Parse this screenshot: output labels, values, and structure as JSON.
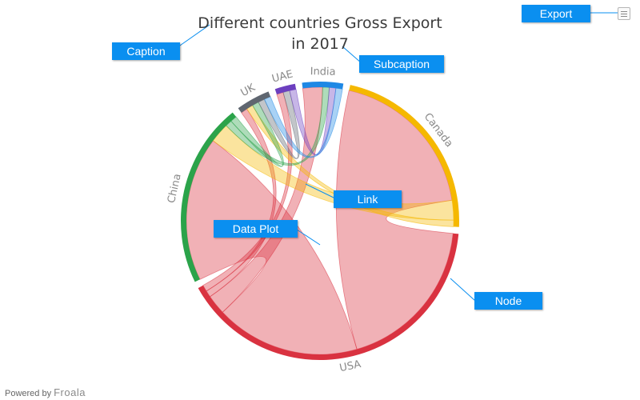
{
  "chart_data": {
    "type": "chord",
    "title": "Different countries Gross Export",
    "subtitle": "in 2017",
    "nodes": [
      {
        "label": "India",
        "color": "#1e88e5"
      },
      {
        "label": "Canada",
        "color": "#f5b800"
      },
      {
        "label": "USA",
        "color": "#d93240"
      },
      {
        "label": "China",
        "color": "#2ba34a"
      },
      {
        "label": "UK",
        "color": "#5f6670"
      },
      {
        "label": "UAE",
        "color": "#6c3fbf"
      }
    ],
    "links": [
      {
        "from": "USA",
        "to": "Canada",
        "value": 12
      },
      {
        "from": "USA",
        "to": "China",
        "value": 11
      },
      {
        "from": "USA",
        "to": "India",
        "value": 1.5
      },
      {
        "from": "USA",
        "to": "UK",
        "value": 0.5
      },
      {
        "from": "USA",
        "to": "UAE",
        "value": 0.5
      },
      {
        "from": "Canada",
        "to": "China",
        "value": 1.5
      },
      {
        "from": "Canada",
        "to": "UK",
        "value": 0.5
      },
      {
        "from": "China",
        "to": "India",
        "value": 0.5
      },
      {
        "from": "China",
        "to": "UK",
        "value": 0.5
      },
      {
        "from": "UK",
        "to": "UAE",
        "value": 0.5
      },
      {
        "from": "UAE",
        "to": "India",
        "value": 0.5
      },
      {
        "from": "India",
        "to": "UK",
        "value": 0.5
      }
    ]
  },
  "annotations": {
    "caption": "Caption",
    "subcaption": "Subcaption",
    "link": "Link",
    "data_plot": "Data Plot",
    "node": "Node",
    "export": "Export"
  },
  "toolbar": {
    "menu_icon": "hamburger-menu-icon"
  },
  "credit": {
    "prefix": "Powered by",
    "brand": "Froala"
  }
}
